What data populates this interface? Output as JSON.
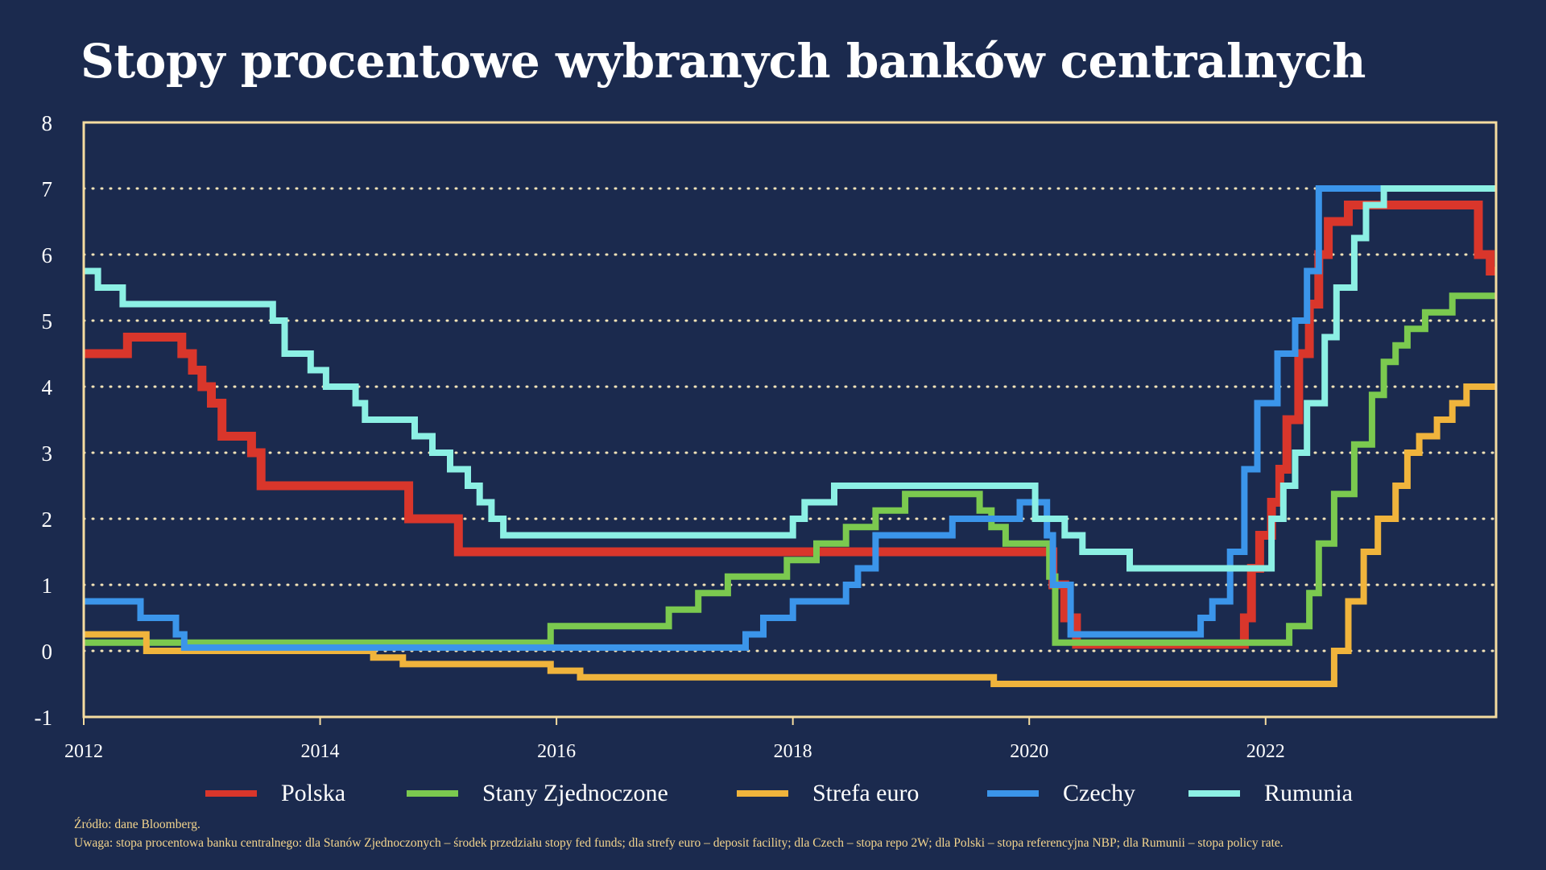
{
  "chart_data": {
    "type": "line",
    "title": "Stopy procentowe wybranych banków centralnych",
    "xlabel": "",
    "ylabel": "",
    "xlim": [
      2012,
      2023.95
    ],
    "ylim": [
      -1,
      8
    ],
    "yticks": [
      -1,
      0,
      1,
      2,
      3,
      4,
      5,
      6,
      7,
      8
    ],
    "xticks": [
      2012,
      2014,
      2016,
      2018,
      2020,
      2022
    ],
    "grid": "horizontal dotted",
    "legend": "bottom",
    "line_shape": "step",
    "series": [
      {
        "name": "Polska",
        "color": "#d9362b",
        "points": [
          [
            2012.0,
            4.5
          ],
          [
            2012.37,
            4.75
          ],
          [
            2012.83,
            4.5
          ],
          [
            2012.92,
            4.25
          ],
          [
            2013.0,
            4.0
          ],
          [
            2013.08,
            3.75
          ],
          [
            2013.17,
            3.25
          ],
          [
            2013.42,
            3.0
          ],
          [
            2013.5,
            2.75
          ],
          [
            2013.5,
            2.5
          ],
          [
            2014.75,
            2.0
          ],
          [
            2015.17,
            1.5
          ],
          [
            2020.05,
            1.5
          ],
          [
            2020.2,
            1.0
          ],
          [
            2020.3,
            0.5
          ],
          [
            2020.4,
            0.1
          ],
          [
            2021.8,
            0.1
          ],
          [
            2021.82,
            0.5
          ],
          [
            2021.88,
            1.25
          ],
          [
            2021.95,
            1.75
          ],
          [
            2022.05,
            2.25
          ],
          [
            2022.12,
            2.75
          ],
          [
            2022.18,
            3.5
          ],
          [
            2022.28,
            4.5
          ],
          [
            2022.37,
            5.25
          ],
          [
            2022.45,
            6.0
          ],
          [
            2022.53,
            6.5
          ],
          [
            2022.7,
            6.75
          ],
          [
            2023.7,
            6.75
          ],
          [
            2023.8,
            6.0
          ],
          [
            2023.9,
            5.75
          ],
          [
            2023.95,
            5.75
          ]
        ]
      },
      {
        "name": "Stany Zjednoczone",
        "color": "#7bc94f",
        "points": [
          [
            2012.0,
            0.125
          ],
          [
            2015.95,
            0.375
          ],
          [
            2016.95,
            0.625
          ],
          [
            2017.2,
            0.875
          ],
          [
            2017.45,
            1.125
          ],
          [
            2017.95,
            1.375
          ],
          [
            2018.2,
            1.625
          ],
          [
            2018.45,
            1.875
          ],
          [
            2018.7,
            2.125
          ],
          [
            2018.95,
            2.375
          ],
          [
            2019.58,
            2.125
          ],
          [
            2019.68,
            1.875
          ],
          [
            2019.8,
            1.625
          ],
          [
            2020.17,
            1.125
          ],
          [
            2020.22,
            0.125
          ],
          [
            2022.2,
            0.375
          ],
          [
            2022.37,
            0.875
          ],
          [
            2022.45,
            1.625
          ],
          [
            2022.58,
            2.375
          ],
          [
            2022.75,
            3.125
          ],
          [
            2022.9,
            3.875
          ],
          [
            2023.0,
            4.375
          ],
          [
            2023.1,
            4.625
          ],
          [
            2023.2,
            4.875
          ],
          [
            2023.35,
            5.125
          ],
          [
            2023.58,
            5.375
          ],
          [
            2023.95,
            5.375
          ]
        ]
      },
      {
        "name": "Strefa euro",
        "color": "#f0b43c",
        "points": [
          [
            2012.0,
            0.25
          ],
          [
            2012.53,
            0.0
          ],
          [
            2014.45,
            -0.1
          ],
          [
            2014.7,
            -0.2
          ],
          [
            2015.95,
            -0.3
          ],
          [
            2016.2,
            -0.4
          ],
          [
            2019.7,
            -0.5
          ],
          [
            2022.5,
            -0.5
          ],
          [
            2022.58,
            0.0
          ],
          [
            2022.7,
            0.75
          ],
          [
            2022.83,
            1.5
          ],
          [
            2022.95,
            2.0
          ],
          [
            2023.1,
            2.5
          ],
          [
            2023.2,
            3.0
          ],
          [
            2023.3,
            3.25
          ],
          [
            2023.45,
            3.5
          ],
          [
            2023.58,
            3.75
          ],
          [
            2023.7,
            4.0
          ],
          [
            2023.95,
            4.0
          ]
        ]
      },
      {
        "name": "Czechy",
        "color": "#3b95ea",
        "points": [
          [
            2012.0,
            0.75
          ],
          [
            2012.48,
            0.5
          ],
          [
            2012.78,
            0.25
          ],
          [
            2012.85,
            0.05
          ],
          [
            2017.6,
            0.25
          ],
          [
            2017.75,
            0.5
          ],
          [
            2018.0,
            0.75
          ],
          [
            2018.45,
            1.0
          ],
          [
            2018.55,
            1.25
          ],
          [
            2018.7,
            1.75
          ],
          [
            2019.35,
            2.0
          ],
          [
            2019.92,
            2.25
          ],
          [
            2020.15,
            1.75
          ],
          [
            2020.2,
            1.0
          ],
          [
            2020.35,
            0.25
          ],
          [
            2021.45,
            0.5
          ],
          [
            2021.55,
            0.75
          ],
          [
            2021.7,
            1.5
          ],
          [
            2021.82,
            2.75
          ],
          [
            2021.93,
            3.75
          ],
          [
            2022.1,
            4.5
          ],
          [
            2022.25,
            5.0
          ],
          [
            2022.35,
            5.75
          ],
          [
            2022.45,
            7.0
          ],
          [
            2023.95,
            7.0
          ]
        ]
      },
      {
        "name": "Rumunia",
        "color": "#8cf0e4",
        "points": [
          [
            2012.0,
            5.75
          ],
          [
            2012.12,
            5.5
          ],
          [
            2012.33,
            5.25
          ],
          [
            2013.6,
            5.0
          ],
          [
            2013.7,
            4.5
          ],
          [
            2013.92,
            4.25
          ],
          [
            2014.05,
            4.0
          ],
          [
            2014.3,
            3.75
          ],
          [
            2014.38,
            3.5
          ],
          [
            2014.8,
            3.25
          ],
          [
            2014.95,
            3.0
          ],
          [
            2015.1,
            2.75
          ],
          [
            2015.25,
            2.5
          ],
          [
            2015.35,
            2.25
          ],
          [
            2015.45,
            2.0
          ],
          [
            2015.55,
            1.75
          ],
          [
            2018.0,
            2.0
          ],
          [
            2018.1,
            2.25
          ],
          [
            2018.35,
            2.5
          ],
          [
            2019.85,
            2.5
          ],
          [
            2020.05,
            2.0
          ],
          [
            2020.3,
            1.75
          ],
          [
            2020.45,
            1.5
          ],
          [
            2020.85,
            1.25
          ],
          [
            2021.6,
            1.25
          ],
          [
            2021.9,
            1.25
          ],
          [
            2022.05,
            2.0
          ],
          [
            2022.15,
            2.5
          ],
          [
            2022.25,
            3.0
          ],
          [
            2022.35,
            3.75
          ],
          [
            2022.5,
            4.75
          ],
          [
            2022.6,
            5.5
          ],
          [
            2022.75,
            6.25
          ],
          [
            2022.85,
            6.75
          ],
          [
            2023.0,
            7.0
          ],
          [
            2023.95,
            7.0
          ]
        ]
      }
    ]
  },
  "legend_items": [
    "Polska",
    "Stany Zjednoczone",
    "Strefa euro",
    "Czechy",
    "Rumunia"
  ],
  "notes": {
    "source": "Źródło: dane Bloomberg.",
    "remark": "Uwaga: stopa procentowa banku centralnego: dla Stanów Zjednoczonych – środek przedziału stopy fed funds; dla strefy euro – deposit facility; dla Czech – stopa repo 2W; dla Polski – stopa referencyjna NBP; dla Rumunii – stopa policy rate."
  },
  "colors": {
    "background": "#1b2a4e",
    "frame": "#f5dca0",
    "grid": "#f3e3b8",
    "notes": "#f4d58d"
  }
}
